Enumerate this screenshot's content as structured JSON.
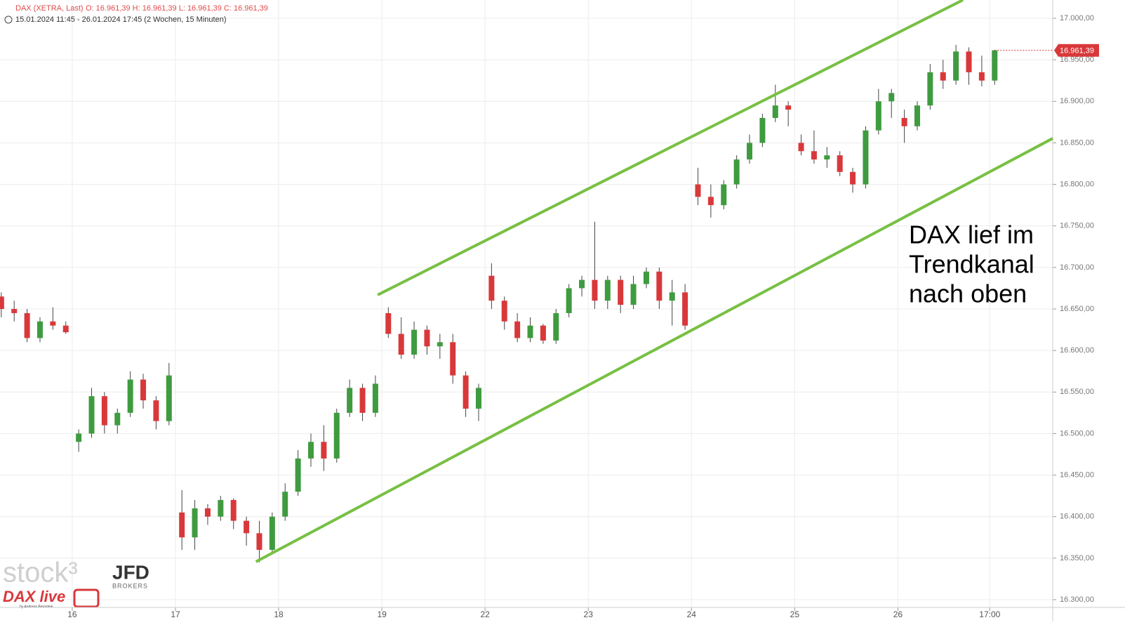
{
  "chart_data": {
    "type": "candlestick",
    "header": {
      "instrument": "DAX (XETRA, Last)",
      "ohlc": "O: 16.961,39  H: 16.961,39  L: 16.961,39  C: 16.961,39",
      "range": "15.01.2024 11:45 - 26.01.2024 17:45  (2 Wochen, 15 Minuten)"
    },
    "annotation": [
      "DAX lief im",
      "Trendkanal",
      "nach oben"
    ],
    "logos": {
      "stock": "stock³",
      "broker": "JFD",
      "broker_sub": "BROKERS",
      "show": "DAX live",
      "author": "by Andreas Bernstein"
    },
    "up_color": "#3f9b3f",
    "down_color": "#d9383a",
    "grid": true,
    "xlim": [
      -0.7,
      9.5
    ],
    "ylim": [
      16290.7,
      17022
    ],
    "xticks": [
      {
        "value": 0,
        "label": "16"
      },
      {
        "value": 1,
        "label": "17"
      },
      {
        "value": 2,
        "label": "18"
      },
      {
        "value": 3,
        "label": "19"
      },
      {
        "value": 4,
        "label": "22"
      },
      {
        "value": 5,
        "label": "23"
      },
      {
        "value": 6,
        "label": "24"
      },
      {
        "value": 7,
        "label": "25"
      },
      {
        "value": 8,
        "label": "26"
      },
      {
        "value": 8.89,
        "label": "17:00"
      }
    ],
    "yticks": [
      {
        "value": 16300,
        "label": "16.300,00"
      },
      {
        "value": 16350,
        "label": "16.350,00"
      },
      {
        "value": 16400,
        "label": "16.400,00"
      },
      {
        "value": 16450,
        "label": "16.450,00"
      },
      {
        "value": 16500,
        "label": "16.500,00"
      },
      {
        "value": 16550,
        "label": "16.550,00"
      },
      {
        "value": 16600,
        "label": "16.600,00"
      },
      {
        "value": 16650,
        "label": "16.650,00"
      },
      {
        "value": 16700,
        "label": "16.700,00"
      },
      {
        "value": 16750,
        "label": "16.750,00"
      },
      {
        "value": 16800,
        "label": "16.800,00"
      },
      {
        "value": 16850,
        "label": "16.850,00"
      },
      {
        "value": 16900,
        "label": "16.900,00"
      },
      {
        "value": 16950,
        "label": "16.950,00"
      },
      {
        "value": 17000,
        "label": "17.000,00"
      }
    ],
    "last_price": {
      "value": 16961.39,
      "label": "16.961,39"
    },
    "trendlines": [
      {
        "color": "#77c043",
        "x": [
          2.96,
          8.63
        ],
        "y": [
          16667,
          17022
        ]
      },
      {
        "color": "#77c043",
        "x": [
          1.78,
          9.5
        ],
        "y": [
          16345.7,
          16855.4
        ]
      }
    ],
    "x": [
      -0.6875,
      -0.5625,
      -0.4375,
      -0.3125,
      -0.1875,
      -0.0625,
      0.0625,
      0.1875,
      0.3125,
      0.4375,
      0.5625,
      0.6875,
      0.8125,
      0.9375,
      1.0625,
      1.1875,
      1.3125,
      1.4375,
      1.5625,
      1.6875,
      1.8125,
      1.9375,
      2.0625,
      2.1875,
      2.3125,
      2.4375,
      2.5625,
      2.6875,
      2.8125,
      2.9375,
      3.0625,
      3.1875,
      3.3125,
      3.4375,
      3.5625,
      3.6875,
      3.8125,
      3.9375,
      4.0625,
      4.1875,
      4.3125,
      4.4375,
      4.5625,
      4.6875,
      4.8125,
      4.9375,
      5.0625,
      5.1875,
      5.3125,
      5.4375,
      5.5625,
      5.6875,
      5.8125,
      5.9375,
      6.0625,
      6.1875,
      6.3125,
      6.4375,
      6.5625,
      6.6875,
      6.8125,
      6.9375,
      7.0625,
      7.1875,
      7.3125,
      7.4375,
      7.5625,
      7.6875,
      7.8125,
      7.9375,
      8.0625,
      8.1875,
      8.3125,
      8.4375,
      8.5625,
      8.6875,
      8.8125,
      8.9375
    ],
    "open": [
      16665,
      16650,
      16645,
      16615,
      16635,
      16630,
      16490,
      16500,
      16545,
      16510,
      16525,
      16565,
      16540,
      16515,
      16405,
      16375,
      16410,
      16400,
      16420,
      16395,
      16380,
      16360,
      16400,
      16430,
      16470,
      16490,
      16470,
      16525,
      16555,
      16525,
      16645,
      16620,
      16595,
      16625,
      16605,
      16610,
      16570,
      16530,
      16690,
      16660,
      16635,
      16615,
      16630,
      16612,
      16645,
      16675,
      16685,
      16660,
      16685,
      16655,
      16680,
      16695,
      16660,
      16670,
      16800,
      16785,
      16775,
      16800,
      16830,
      16850,
      16880,
      16895,
      16850,
      16840,
      16830,
      16835,
      16815,
      16800,
      16865,
      16900,
      16880,
      16870,
      16895,
      16935,
      16925,
      16960,
      16935,
      16925
    ],
    "high": [
      16670,
      16660,
      16650,
      16640,
      16652,
      16635,
      16505,
      16555,
      16550,
      16530,
      16575,
      16572,
      16545,
      16585,
      16432,
      16420,
      16415,
      16425,
      16422,
      16400,
      16395,
      16405,
      16440,
      16480,
      16500,
      16510,
      16530,
      16565,
      16560,
      16570,
      16652,
      16640,
      16635,
      16630,
      16620,
      16620,
      16575,
      16560,
      16705,
      16665,
      16645,
      16640,
      16632,
      16650,
      16680,
      16690,
      16755,
      16690,
      16690,
      16690,
      16700,
      16700,
      16685,
      16680,
      16820,
      16800,
      16805,
      16835,
      16860,
      16885,
      16920,
      16900,
      16860,
      16865,
      16845,
      16840,
      16820,
      16870,
      16915,
      16915,
      16890,
      16900,
      16945,
      16950,
      16968,
      16965,
      16955,
      16962
    ],
    "low": [
      16640,
      16635,
      16610,
      16610,
      16625,
      16620,
      16478,
      16495,
      16500,
      16500,
      16520,
      16530,
      16505,
      16510,
      16360,
      16360,
      16390,
      16395,
      16385,
      16365,
      16345,
      16355,
      16395,
      16425,
      16460,
      16455,
      16465,
      16520,
      16515,
      16520,
      16615,
      16590,
      16590,
      16595,
      16590,
      16560,
      16520,
      16515,
      16650,
      16625,
      16610,
      16610,
      16608,
      16608,
      16640,
      16665,
      16650,
      16650,
      16645,
      16650,
      16675,
      16650,
      16630,
      16625,
      16775,
      16760,
      16770,
      16795,
      16825,
      16845,
      16875,
      16870,
      16835,
      16825,
      16820,
      16810,
      16790,
      16795,
      16860,
      16880,
      16850,
      16865,
      16890,
      16915,
      16920,
      16920,
      16918,
      16920
    ],
    "close": [
      16650,
      16645,
      16615,
      16635,
      16630,
      16622,
      16500,
      16545,
      16510,
      16525,
      16565,
      16540,
      16515,
      16570,
      16375,
      16410,
      16400,
      16420,
      16395,
      16380,
      16360,
      16400,
      16430,
      16470,
      16490,
      16470,
      16525,
      16555,
      16525,
      16560,
      16620,
      16595,
      16625,
      16605,
      16610,
      16570,
      16530,
      16555,
      16660,
      16635,
      16615,
      16630,
      16612,
      16645,
      16675,
      16685,
      16660,
      16685,
      16655,
      16680,
      16695,
      16660,
      16670,
      16630,
      16785,
      16775,
      16800,
      16830,
      16850,
      16880,
      16895,
      16890,
      16840,
      16830,
      16835,
      16815,
      16800,
      16865,
      16900,
      16910,
      16870,
      16895,
      16935,
      16925,
      16960,
      16935,
      16925,
      16961.39
    ]
  }
}
